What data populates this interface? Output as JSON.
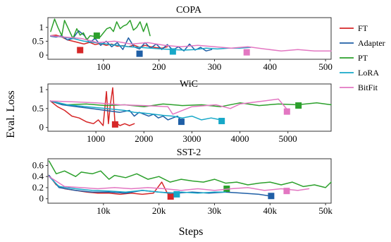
{
  "figure": {
    "ylabel": "Eval. Loss",
    "xlabel": "Steps"
  },
  "legend": [
    {
      "name": "FT",
      "color": "#d62728"
    },
    {
      "name": "Adapter",
      "color": "#1f5fa6"
    },
    {
      "name": "PT",
      "color": "#2ca02c"
    },
    {
      "name": "LoRA",
      "color": "#17a8c8"
    },
    {
      "name": "BitFit",
      "color": "#e377c2"
    }
  ],
  "chart_data": [
    {
      "type": "line",
      "title": "COPA",
      "xlim": [
        0,
        510
      ],
      "ylim": [
        -0.15,
        1.35
      ],
      "xticks": [
        100,
        200,
        300,
        400,
        500
      ],
      "xtick_labels": [
        "100",
        "200",
        "300",
        "400",
        "500"
      ],
      "yticks": [
        0,
        0.5,
        1
      ],
      "ytick_labels": [
        "0",
        "0.5",
        "1"
      ],
      "series": [
        {
          "name": "FT",
          "color": "#d62728",
          "x": [
            5,
            15,
            25,
            35,
            45,
            55,
            65,
            75,
            85,
            95,
            105,
            115,
            125,
            135,
            145,
            155,
            165,
            175,
            185,
            195,
            205,
            215
          ],
          "y": [
            0.7,
            0.72,
            0.65,
            0.55,
            0.5,
            0.45,
            0.4,
            0.46,
            0.38,
            0.42,
            0.35,
            0.4,
            0.32,
            0.34,
            0.3,
            0.36,
            0.28,
            0.35,
            0.3,
            0.27,
            0.25,
            0.3
          ],
          "marker": {
            "x": 58,
            "y": 0.18
          }
        },
        {
          "name": "Adapter",
          "color": "#1f5fa6",
          "x": [
            5,
            15,
            25,
            35,
            45,
            55,
            65,
            75,
            85,
            95,
            105,
            115,
            125,
            135,
            145,
            155,
            165,
            175,
            185,
            195,
            205,
            215,
            225,
            235,
            245,
            255,
            265,
            275,
            285,
            295
          ],
          "y": [
            0.68,
            0.65,
            0.7,
            0.55,
            0.6,
            0.88,
            0.72,
            0.45,
            0.6,
            0.35,
            0.5,
            0.3,
            0.45,
            0.2,
            0.62,
            0.3,
            0.22,
            0.45,
            0.25,
            0.4,
            0.2,
            0.38,
            0.18,
            0.3,
            0.15,
            0.4,
            0.18,
            0.28,
            0.15,
            0.2
          ],
          "marker": {
            "x": 165,
            "y": 0.05
          }
        },
        {
          "name": "PT",
          "color": "#2ca02c",
          "x": [
            5,
            12,
            18,
            25,
            30,
            38,
            45,
            52,
            58,
            64,
            70,
            76,
            82,
            88,
            94,
            100,
            106,
            112,
            118,
            124,
            130,
            136,
            142,
            148,
            154,
            160,
            166,
            172,
            178,
            184
          ],
          "y": [
            0.85,
            1.3,
            1.0,
            0.7,
            1.25,
            0.9,
            0.6,
            0.95,
            0.72,
            0.8,
            0.55,
            0.7,
            0.68,
            0.75,
            0.65,
            0.8,
            0.95,
            1.0,
            0.85,
            1.2,
            0.95,
            1.05,
            1.1,
            1.25,
            0.9,
            1.0,
            1.2,
            0.85,
            1.15,
            0.7
          ],
          "marker": {
            "x": 88,
            "y": 0.7
          }
        },
        {
          "name": "LoRA",
          "color": "#17a8c8",
          "x": [
            5,
            25,
            45,
            65,
            85,
            105,
            125,
            145,
            165,
            185,
            205,
            225,
            245,
            265,
            285,
            305,
            325,
            345,
            365
          ],
          "y": [
            0.7,
            0.65,
            0.6,
            0.5,
            0.45,
            0.4,
            0.35,
            0.3,
            0.28,
            0.25,
            0.22,
            0.2,
            0.18,
            0.2,
            0.25,
            0.22,
            0.25,
            0.25,
            0.28
          ],
          "marker": {
            "x": 225,
            "y": 0.13
          }
        },
        {
          "name": "BitFit",
          "color": "#e377c2",
          "x": [
            5,
            30,
            60,
            90,
            120,
            150,
            180,
            210,
            240,
            270,
            300,
            330,
            360,
            390,
            420,
            450,
            480,
            510
          ],
          "y": [
            0.7,
            0.65,
            0.6,
            0.45,
            0.5,
            0.4,
            0.45,
            0.35,
            0.3,
            0.35,
            0.3,
            0.25,
            0.3,
            0.22,
            0.15,
            0.2,
            0.15,
            0.15
          ],
          "marker": {
            "x": 358,
            "y": 0.1
          }
        }
      ]
    },
    {
      "type": "line",
      "title": "WiC",
      "xlim": [
        0,
        5900
      ],
      "ylim": [
        -0.1,
        1.15
      ],
      "xticks": [
        1000,
        2000,
        3000,
        4000,
        5000
      ],
      "xtick_labels": [
        "1000",
        "2000",
        "3000",
        "4000",
        "5000"
      ],
      "yticks": [
        0,
        0.5,
        1
      ],
      "ytick_labels": [
        "0",
        "0.5",
        "1"
      ],
      "series": [
        {
          "name": "FT",
          "color": "#d62728",
          "x": [
            50,
            200,
            350,
            500,
            650,
            800,
            950,
            1050,
            1150,
            1220,
            1260,
            1300,
            1350,
            1400,
            1450,
            1500,
            1600,
            1700,
            1800
          ],
          "y": [
            0.7,
            0.55,
            0.45,
            0.3,
            0.25,
            0.15,
            0.1,
            0.2,
            0.05,
            0.95,
            0.1,
            0.6,
            1.05,
            0.05,
            0.1,
            0.05,
            0.1,
            0.05,
            0.1
          ],
          "marker": {
            "x": 1400,
            "y": 0.08
          }
        },
        {
          "name": "Adapter",
          "color": "#1f5fa6",
          "x": [
            50,
            300,
            600,
            900,
            1200,
            1500,
            1700,
            1800,
            1900,
            2000,
            2100,
            2200,
            2300,
            2400,
            2500,
            2600,
            2700,
            2800
          ],
          "y": [
            0.7,
            0.6,
            0.55,
            0.5,
            0.45,
            0.4,
            0.45,
            0.3,
            0.4,
            0.35,
            0.3,
            0.35,
            0.25,
            0.3,
            0.2,
            0.25,
            0.3,
            0.15
          ],
          "marker": {
            "x": 2780,
            "y": 0.15
          }
        },
        {
          "name": "PT",
          "color": "#2ca02c",
          "x": [
            50,
            400,
            800,
            1200,
            1600,
            2000,
            2400,
            2800,
            3200,
            3600,
            4000,
            4400,
            4800,
            5200,
            5600,
            5900
          ],
          "y": [
            0.7,
            0.6,
            0.62,
            0.58,
            0.6,
            0.55,
            0.62,
            0.58,
            0.6,
            0.55,
            0.65,
            0.58,
            0.62,
            0.6,
            0.65,
            0.6
          ],
          "marker": {
            "x": 5220,
            "y": 0.58
          }
        },
        {
          "name": "LoRA",
          "color": "#17a8c8",
          "x": [
            50,
            400,
            800,
            1200,
            1600,
            1800,
            2000,
            2200,
            2400,
            2600,
            2800,
            3000,
            3200,
            3400,
            3600
          ],
          "y": [
            0.7,
            0.6,
            0.55,
            0.5,
            0.45,
            0.4,
            0.38,
            0.35,
            0.32,
            0.3,
            0.25,
            0.3,
            0.2,
            0.25,
            0.2
          ],
          "marker": {
            "x": 3620,
            "y": 0.17
          }
        },
        {
          "name": "BitFit",
          "color": "#e377c2",
          "x": [
            50,
            500,
            1000,
            1500,
            2000,
            2500,
            2600,
            3000,
            3500,
            3800,
            4000,
            4500,
            4800,
            5000
          ],
          "y": [
            0.7,
            0.68,
            0.65,
            0.6,
            0.58,
            0.55,
            0.35,
            0.55,
            0.6,
            0.5,
            0.62,
            0.7,
            0.75,
            0.45
          ],
          "marker": {
            "x": 4980,
            "y": 0.42
          }
        }
      ]
    },
    {
      "type": "line",
      "title": "SST-2",
      "xlim": [
        0,
        51000
      ],
      "ylim": [
        -0.08,
        0.72
      ],
      "xticks": [
        10000,
        20000,
        30000,
        40000,
        50000
      ],
      "xtick_labels": [
        "10k",
        "20k",
        "30k",
        "40k",
        "50k"
      ],
      "yticks": [
        0,
        0.2,
        0.4,
        0.6
      ],
      "ytick_labels": [
        "0",
        "0.2",
        "0.4",
        "0.6"
      ],
      "series": [
        {
          "name": "FT",
          "color": "#d62728",
          "x": [
            200,
            1500,
            3000,
            5000,
            7000,
            9000,
            11000,
            13000,
            15000,
            17000,
            19000,
            20500,
            21500,
            22000
          ],
          "y": [
            0.42,
            0.25,
            0.18,
            0.15,
            0.12,
            0.1,
            0.1,
            0.08,
            0.1,
            0.08,
            0.1,
            0.3,
            0.1,
            0.08
          ],
          "marker": {
            "x": 22100,
            "y": 0.04
          }
        },
        {
          "name": "Adapter",
          "color": "#1f5fa6",
          "x": [
            200,
            2000,
            5000,
            8000,
            11000,
            14000,
            17000,
            20000,
            23000,
            26000,
            29000,
            32000,
            35000,
            38000,
            40000
          ],
          "y": [
            0.42,
            0.2,
            0.15,
            0.12,
            0.12,
            0.1,
            0.15,
            0.12,
            0.1,
            0.12,
            0.1,
            0.12,
            0.1,
            0.08,
            0.05
          ],
          "marker": {
            "x": 40200,
            "y": 0.05
          }
        },
        {
          "name": "PT",
          "color": "#2ca02c",
          "x": [
            200,
            1500,
            3000,
            5000,
            6000,
            8000,
            9500,
            11000,
            12000,
            14000,
            16000,
            18000,
            20000,
            22000,
            24000,
            26000,
            28000,
            30000,
            32000,
            34000,
            36000,
            38000,
            40000,
            42000,
            44000,
            46000,
            48000,
            50000,
            51000
          ],
          "y": [
            0.68,
            0.45,
            0.5,
            0.4,
            0.48,
            0.45,
            0.5,
            0.35,
            0.42,
            0.38,
            0.45,
            0.35,
            0.4,
            0.3,
            0.35,
            0.32,
            0.3,
            0.35,
            0.28,
            0.3,
            0.25,
            0.28,
            0.3,
            0.25,
            0.3,
            0.22,
            0.25,
            0.2,
            0.3
          ],
          "marker": {
            "x": 32200,
            "y": 0.18
          }
        },
        {
          "name": "LoRA",
          "color": "#17a8c8",
          "x": [
            200,
            2000,
            5000,
            8000,
            11000,
            14000,
            17000,
            20000,
            22000,
            24000,
            27000,
            30000,
            32000
          ],
          "y": [
            0.4,
            0.22,
            0.18,
            0.15,
            0.14,
            0.12,
            0.15,
            0.12,
            0.1,
            0.12,
            0.1,
            0.12,
            0.12
          ],
          "marker": {
            "x": 23200,
            "y": 0.08
          }
        },
        {
          "name": "BitFit",
          "color": "#e377c2",
          "x": [
            200,
            3000,
            6000,
            9000,
            12000,
            15000,
            18000,
            21000,
            24000,
            27000,
            30000,
            33000,
            36000,
            39000,
            42000,
            45000,
            47000
          ],
          "y": [
            0.4,
            0.22,
            0.2,
            0.18,
            0.2,
            0.18,
            0.2,
            0.18,
            0.15,
            0.18,
            0.15,
            0.18,
            0.2,
            0.15,
            0.18,
            0.15,
            0.18
          ],
          "marker": {
            "x": 43000,
            "y": 0.14
          }
        }
      ]
    }
  ]
}
